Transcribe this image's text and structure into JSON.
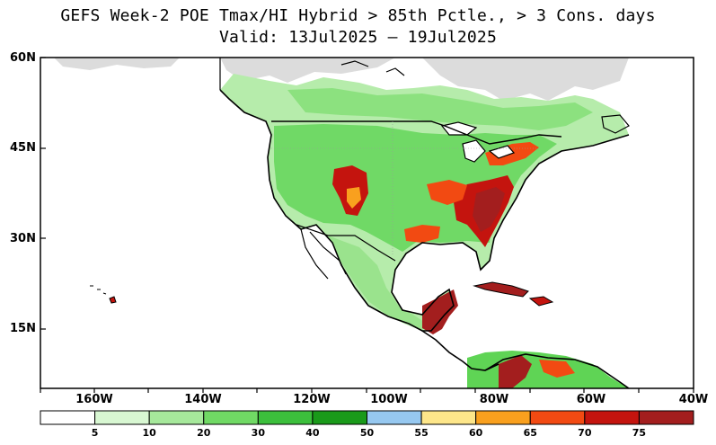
{
  "title": {
    "line1": "GEFS Week-2 POE Tmax/HI Hybrid > 85th Pctle., > 3 Cons. days",
    "line2": "Valid: 13Jul2025 – 19Jul2025"
  },
  "map": {
    "lat_labels": [
      "60N",
      "45N",
      "30N",
      "15N"
    ],
    "lon_labels": [
      "160W",
      "140W",
      "120W",
      "100W",
      "80W",
      "60W",
      "40W"
    ]
  },
  "colorbar": {
    "labels": [
      "5",
      "10",
      "20",
      "30",
      "40",
      "50",
      "55",
      "60",
      "65",
      "70",
      "75"
    ],
    "colors": [
      "#ffffff",
      "#d8f7d2",
      "#a6e89b",
      "#70d964",
      "#3cbf3c",
      "#1a9a1a",
      "#96c8f0",
      "#fde68a",
      "#f9a01e",
      "#f24a12",
      "#c4140e",
      "#a31e1e"
    ]
  }
}
